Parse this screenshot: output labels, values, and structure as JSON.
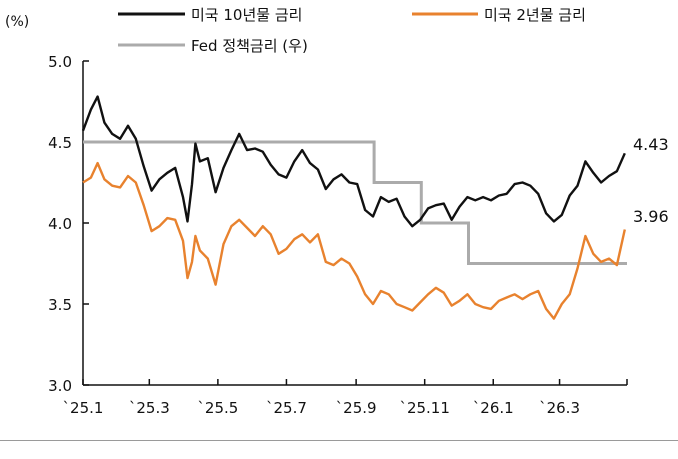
{
  "chart_data": {
    "type": "line",
    "unit_label": "(%)",
    "ylim": [
      3.0,
      5.0
    ],
    "y_ticks": [
      "5.0",
      "4.5",
      "4.0",
      "3.5",
      "3.0"
    ],
    "y_tick_values": [
      5.0,
      4.5,
      4.0,
      3.5,
      3.0
    ],
    "x_tick_labels": [
      "`25.1",
      "`25.3",
      "`25.5",
      "`25.7",
      "`25.9",
      "`25.11",
      "`26.1",
      "`26.3"
    ],
    "x_tick_dates": [
      "2025-01-01",
      "2025-03-01",
      "2025-05-01",
      "2025-07-01",
      "2025-09-01",
      "2025-11-01",
      "2026-01-01",
      "2026-03-01"
    ],
    "xlim": [
      "2025-01-01",
      "2026-04-30"
    ],
    "grid": false,
    "legend_placement": "top",
    "series": [
      {
        "name": "미국 10년물 금리",
        "color": "#111111",
        "end_label": "4.43",
        "x": [
          "2025-01-01",
          "2025-01-08",
          "2025-01-14",
          "2025-01-20",
          "2025-01-27",
          "2025-02-03",
          "2025-02-10",
          "2025-02-17",
          "2025-02-24",
          "2025-03-03",
          "2025-03-10",
          "2025-03-17",
          "2025-03-24",
          "2025-03-31",
          "2025-04-04",
          "2025-04-08",
          "2025-04-11",
          "2025-04-15",
          "2025-04-22",
          "2025-04-29",
          "2025-05-06",
          "2025-05-13",
          "2025-05-20",
          "2025-05-27",
          "2025-06-03",
          "2025-06-10",
          "2025-06-17",
          "2025-06-24",
          "2025-07-01",
          "2025-07-08",
          "2025-07-15",
          "2025-07-22",
          "2025-07-29",
          "2025-08-05",
          "2025-08-12",
          "2025-08-19",
          "2025-08-26",
          "2025-09-02",
          "2025-09-09",
          "2025-09-16",
          "2025-09-23",
          "2025-09-30",
          "2025-10-07",
          "2025-10-14",
          "2025-10-21",
          "2025-10-28",
          "2025-11-04",
          "2025-11-11",
          "2025-11-18",
          "2025-11-25",
          "2025-12-02",
          "2025-12-09",
          "2025-12-16",
          "2025-12-23",
          "2025-12-30",
          "2026-01-06",
          "2026-01-13",
          "2026-01-20",
          "2026-01-27",
          "2026-02-03",
          "2026-02-10",
          "2026-02-17",
          "2026-02-24",
          "2026-03-03",
          "2026-03-10",
          "2026-03-17",
          "2026-03-24",
          "2026-03-31",
          "2026-04-07",
          "2026-04-14",
          "2026-04-21",
          "2026-04-28"
        ],
        "values": [
          4.57,
          4.7,
          4.78,
          4.62,
          4.55,
          4.52,
          4.6,
          4.52,
          4.35,
          4.2,
          4.27,
          4.31,
          4.34,
          4.16,
          4.01,
          4.24,
          4.49,
          4.38,
          4.4,
          4.19,
          4.34,
          4.45,
          4.55,
          4.45,
          4.46,
          4.44,
          4.36,
          4.3,
          4.28,
          4.38,
          4.45,
          4.37,
          4.33,
          4.21,
          4.27,
          4.3,
          4.25,
          4.24,
          4.08,
          4.04,
          4.16,
          4.13,
          4.15,
          4.04,
          3.98,
          4.02,
          4.09,
          4.11,
          4.12,
          4.02,
          4.1,
          4.16,
          4.14,
          4.16,
          4.14,
          4.17,
          4.18,
          4.24,
          4.25,
          4.23,
          4.18,
          4.06,
          4.01,
          4.05,
          4.17,
          4.23,
          4.38,
          4.31,
          4.25,
          4.29,
          4.32,
          4.43
        ]
      },
      {
        "name": "미국 2년물 금리",
        "color": "#E8822E",
        "end_label": "3.96",
        "x": [
          "2025-01-01",
          "2025-01-08",
          "2025-01-14",
          "2025-01-20",
          "2025-01-27",
          "2025-02-03",
          "2025-02-10",
          "2025-02-17",
          "2025-02-24",
          "2025-03-03",
          "2025-03-10",
          "2025-03-17",
          "2025-03-24",
          "2025-03-31",
          "2025-04-04",
          "2025-04-08",
          "2025-04-11",
          "2025-04-15",
          "2025-04-22",
          "2025-04-29",
          "2025-05-06",
          "2025-05-13",
          "2025-05-20",
          "2025-05-27",
          "2025-06-03",
          "2025-06-10",
          "2025-06-17",
          "2025-06-24",
          "2025-07-01",
          "2025-07-08",
          "2025-07-15",
          "2025-07-22",
          "2025-07-29",
          "2025-08-05",
          "2025-08-12",
          "2025-08-19",
          "2025-08-26",
          "2025-09-02",
          "2025-09-09",
          "2025-09-16",
          "2025-09-23",
          "2025-09-30",
          "2025-10-07",
          "2025-10-14",
          "2025-10-21",
          "2025-10-28",
          "2025-11-04",
          "2025-11-11",
          "2025-11-18",
          "2025-11-25",
          "2025-12-02",
          "2025-12-09",
          "2025-12-16",
          "2025-12-23",
          "2025-12-30",
          "2026-01-06",
          "2026-01-13",
          "2026-01-20",
          "2026-01-27",
          "2026-02-03",
          "2026-02-10",
          "2026-02-17",
          "2026-02-24",
          "2026-03-03",
          "2026-03-10",
          "2026-03-17",
          "2026-03-24",
          "2026-03-31",
          "2026-04-07",
          "2026-04-14",
          "2026-04-21",
          "2026-04-28"
        ],
        "values": [
          4.25,
          4.28,
          4.37,
          4.27,
          4.23,
          4.22,
          4.29,
          4.25,
          4.11,
          3.95,
          3.98,
          4.03,
          4.02,
          3.89,
          3.66,
          3.76,
          3.92,
          3.83,
          3.78,
          3.62,
          3.87,
          3.98,
          4.02,
          3.97,
          3.92,
          3.98,
          3.93,
          3.81,
          3.84,
          3.9,
          3.93,
          3.88,
          3.93,
          3.76,
          3.74,
          3.78,
          3.75,
          3.67,
          3.56,
          3.5,
          3.58,
          3.56,
          3.5,
          3.48,
          3.46,
          3.51,
          3.56,
          3.6,
          3.57,
          3.49,
          3.52,
          3.56,
          3.5,
          3.48,
          3.47,
          3.52,
          3.54,
          3.56,
          3.53,
          3.56,
          3.58,
          3.47,
          3.41,
          3.5,
          3.56,
          3.72,
          3.92,
          3.81,
          3.76,
          3.78,
          3.74,
          3.96
        ]
      },
      {
        "name": "Fed 정책금리 (우)",
        "color": "#ABABAB",
        "step": true,
        "x": [
          "2025-01-01",
          "2025-09-17",
          "2025-10-29",
          "2025-12-10",
          "2026-04-30"
        ],
        "values": [
          4.5,
          4.25,
          4.0,
          3.75,
          3.75
        ]
      }
    ]
  }
}
